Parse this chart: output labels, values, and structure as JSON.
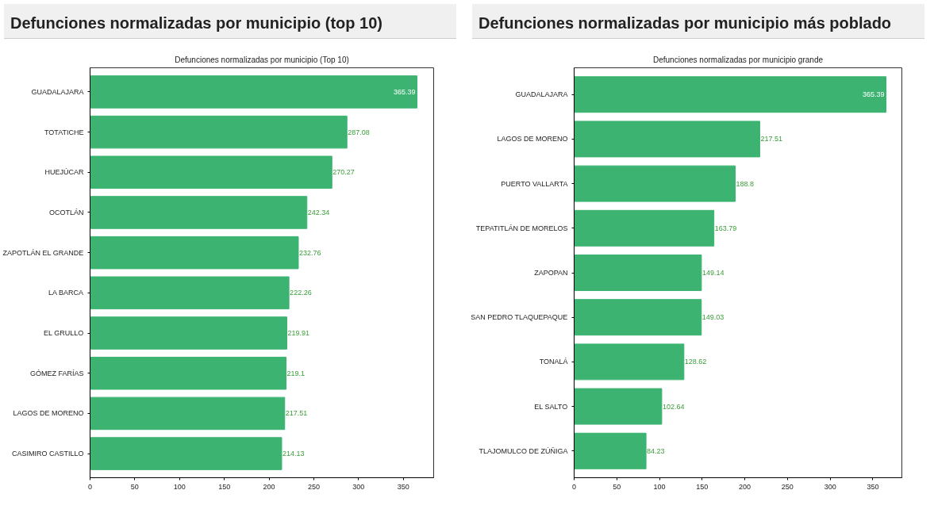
{
  "chart_data": [
    {
      "type": "bar",
      "orientation": "horizontal",
      "title": "Defunciones normalizadas por municipio (top 10)",
      "subtitle": "Defunciones normalizadas por municipio (Top 10)",
      "categories": [
        "GUADALAJARA",
        "TOTATICHE",
        "HUEJÚCAR",
        "OCOTLÁN",
        "ZAPOTLÁN EL GRANDE",
        "LA BARCA",
        "EL GRULLO",
        "GÓMEZ FARÍAS",
        "LAGOS DE MORENO",
        "CASIMIRO CASTILLO"
      ],
      "values": [
        365.39,
        287.08,
        270.27,
        242.34,
        232.76,
        222.26,
        219.91,
        219.1,
        217.51,
        214.13
      ],
      "color": "#3cb371",
      "data_labels": true,
      "grid": false,
      "xlim": [
        0,
        384
      ],
      "xticks": [
        0,
        50,
        100,
        150,
        200,
        250,
        300,
        350
      ]
    },
    {
      "type": "bar",
      "orientation": "horizontal",
      "title": "Defunciones normalizadas por municipio más poblado",
      "subtitle": "Defunciones normalizadas por municipio grande",
      "categories": [
        "GUADALAJARA",
        "LAGOS DE MORENO",
        "PUERTO VALLARTA",
        "TEPATITLÁN DE MORELOS",
        "ZAPOPAN",
        "SAN PEDRO TLAQUEPAQUE",
        "TONALÁ",
        "EL SALTO",
        "TLAJOMULCO DE ZÚÑIGA"
      ],
      "values": [
        365.39,
        217.51,
        188.8,
        163.79,
        149.14,
        149.03,
        128.62,
        102.64,
        84.23
      ],
      "color": "#3cb371",
      "data_labels": true,
      "grid": false,
      "xlim": [
        0,
        384
      ],
      "xticks": [
        0,
        50,
        100,
        150,
        200,
        250,
        300,
        350
      ]
    }
  ]
}
